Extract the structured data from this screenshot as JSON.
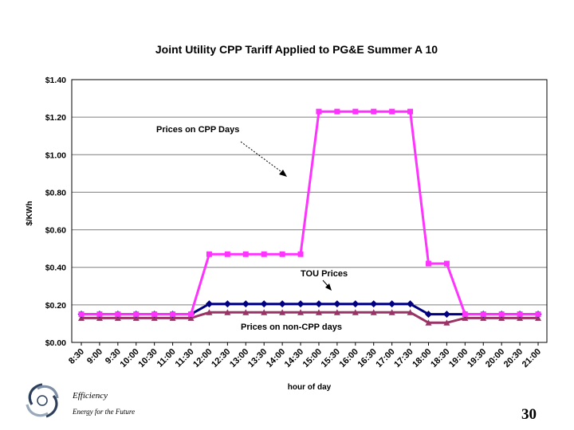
{
  "chart_data": {
    "type": "line",
    "title": "Joint Utility CPP Tariff Applied to PG&E Summer A 10",
    "xlabel": "hour of day",
    "ylabel": "$/KWh",
    "ylim": [
      0,
      1.4
    ],
    "yticks": [
      "$0.00",
      "$0.20",
      "$0.40",
      "$0.60",
      "$0.80",
      "$1.00",
      "$1.20",
      "$1.40"
    ],
    "grid": "horizontal",
    "categories": [
      "8:30",
      "9:00",
      "9:30",
      "10:00",
      "10:30",
      "11:00",
      "11:30",
      "12:00",
      "12:30",
      "13:00",
      "13:30",
      "14:00",
      "14:30",
      "15:00",
      "15:30",
      "16:00",
      "16:30",
      "17:00",
      "17:30",
      "18:00",
      "18:30",
      "19:00",
      "19:30",
      "20:00",
      "20:30",
      "21:00"
    ],
    "series": [
      {
        "name": "Prices on CPP Days",
        "color": "#ff33ff",
        "marker": "square",
        "values": [
          0.15,
          0.15,
          0.15,
          0.15,
          0.15,
          0.15,
          0.15,
          0.47,
          0.47,
          0.47,
          0.47,
          0.47,
          0.47,
          1.23,
          1.23,
          1.23,
          1.23,
          1.23,
          1.23,
          0.42,
          0.42,
          0.15,
          0.15,
          0.15,
          0.15,
          0.15
        ]
      },
      {
        "name": "TOU Prices",
        "color": "#000080",
        "marker": "diamond",
        "values": [
          0.15,
          0.15,
          0.15,
          0.15,
          0.15,
          0.15,
          0.15,
          0.205,
          0.205,
          0.205,
          0.205,
          0.205,
          0.205,
          0.205,
          0.205,
          0.205,
          0.205,
          0.205,
          0.205,
          0.15,
          0.15,
          0.15,
          0.15,
          0.15,
          0.15,
          0.15
        ]
      },
      {
        "name": "Prices on non-CPP days",
        "color": "#993366",
        "marker": "triangle",
        "values": [
          0.13,
          0.13,
          0.13,
          0.13,
          0.13,
          0.13,
          0.13,
          0.16,
          0.16,
          0.16,
          0.16,
          0.16,
          0.16,
          0.16,
          0.16,
          0.16,
          0.16,
          0.16,
          0.16,
          0.105,
          0.105,
          0.13,
          0.13,
          0.13,
          0.13,
          0.13
        ]
      }
    ],
    "annotations": [
      "Prices on CPP Days",
      "TOU Prices",
      "Prices on non-CPP days"
    ]
  },
  "footer": {
    "title": "Efficiency",
    "subtitle": "Energy for the Future",
    "page_number": "30"
  }
}
